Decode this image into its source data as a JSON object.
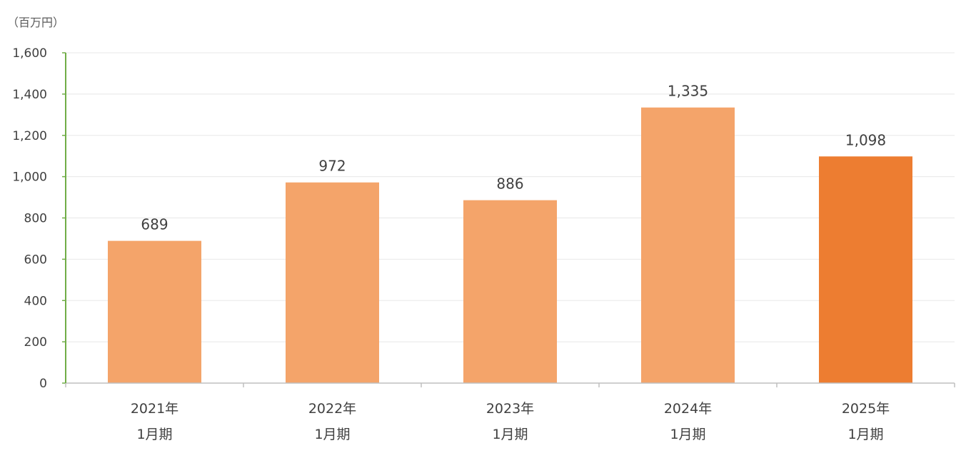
{
  "chart_data": {
    "type": "bar",
    "unit_label": "（百万円）",
    "categories": [
      [
        "2021年",
        "1月期"
      ],
      [
        "2022年",
        "1月期"
      ],
      [
        "2023年",
        "1月期"
      ],
      [
        "2024年",
        "1月期"
      ],
      [
        "2025年",
        "1月期"
      ]
    ],
    "values": [
      689,
      972,
      886,
      1335,
      1098
    ],
    "value_labels": [
      "689",
      "972",
      "886",
      "1,335",
      "1,098"
    ],
    "ylim": [
      0,
      1600
    ],
    "yticks": [
      0,
      200,
      400,
      600,
      800,
      1000,
      1200,
      1400,
      1600
    ],
    "ytick_labels": [
      "0",
      "200",
      "400",
      "600",
      "800",
      "1,000",
      "1,200",
      "1,400",
      "1,600"
    ],
    "grid": true,
    "colors": {
      "bar": "#F4A46A",
      "bar_highlight": "#ED7D31",
      "axis": "#70AD47",
      "grid": "#E8E8E8",
      "text": "#404040"
    },
    "highlight_index": 4
  }
}
